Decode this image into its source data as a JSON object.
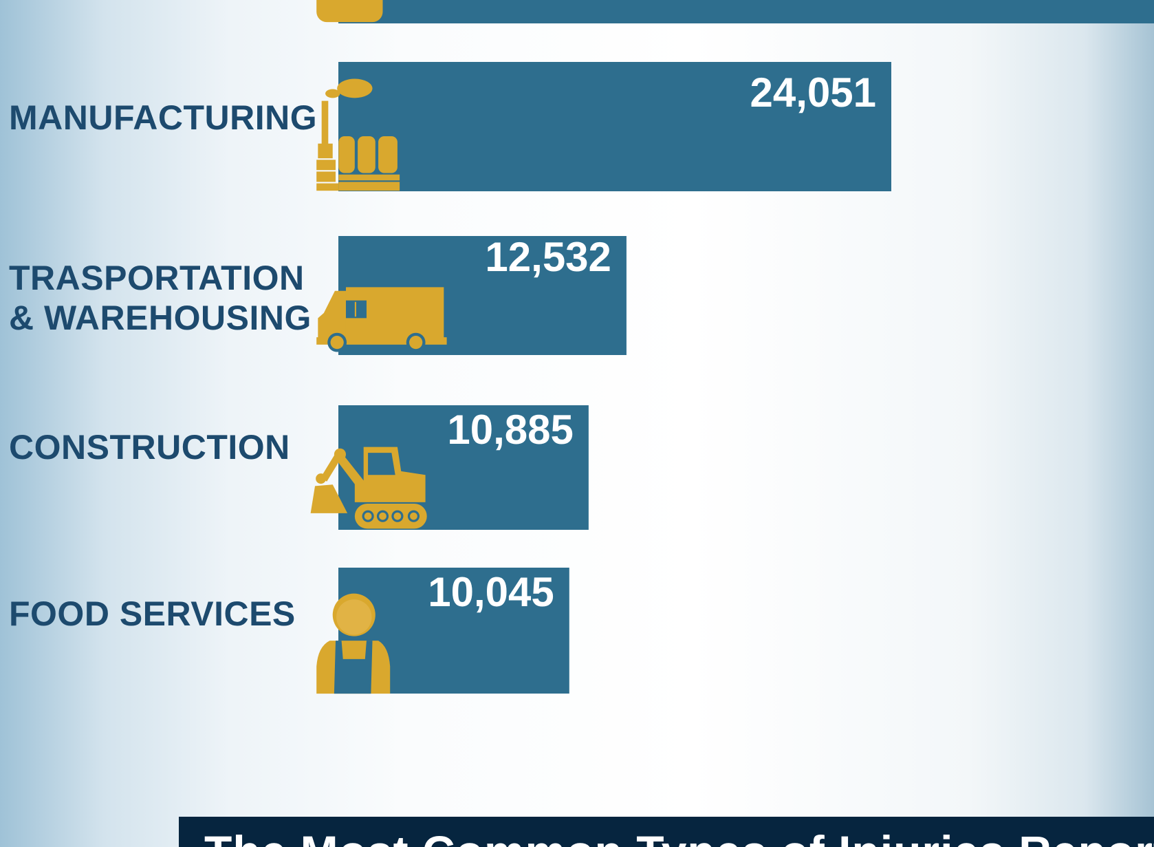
{
  "chart_data": {
    "type": "bar",
    "categories": [
      "MANUFACTURING",
      "TRASPORTATION\n& WAREHOUSING",
      "CONSTRUCTION",
      "FOOD SERVICES"
    ],
    "values": [
      24051,
      12532,
      10885,
      10045
    ],
    "value_labels": [
      "24,051",
      "12,532",
      "10,885",
      "10,045"
    ],
    "color": "#2e6e8e",
    "banner": "The Most Common Types of Injuries Reported"
  }
}
